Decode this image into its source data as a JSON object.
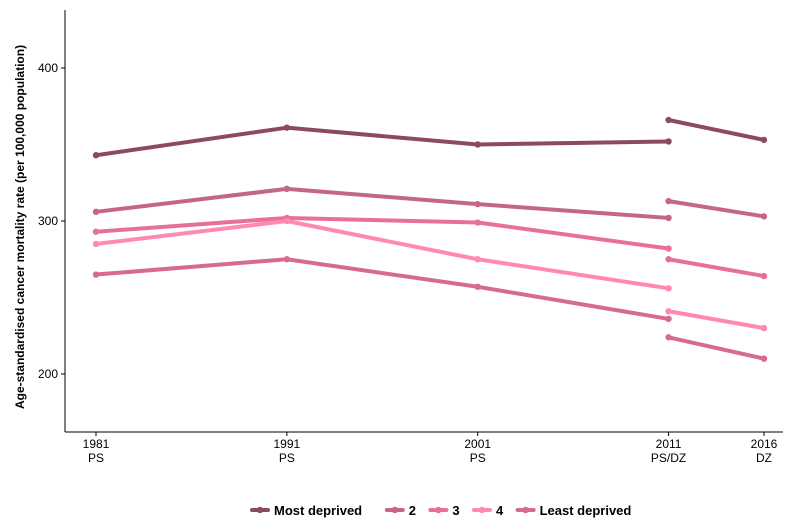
{
  "chart_data": {
    "type": "line",
    "title": "",
    "xlabel": "",
    "ylabel": "Age-standardised cancer mortality rate (per 100,000 population)",
    "ylim": [
      130,
      440
    ],
    "yticks": [
      200,
      300,
      400
    ],
    "x_ticks": [
      {
        "year": 1981,
        "line1": "1981",
        "line2": "PS"
      },
      {
        "year": 1991,
        "line1": "1991",
        "line2": "PS"
      },
      {
        "year": 2001,
        "line1": "2001",
        "line2": "PS"
      },
      {
        "year": 2011,
        "line1": "2011",
        "line2": "PS/DZ"
      },
      {
        "year": 2016,
        "line1": "2016",
        "line2": "DZ"
      }
    ],
    "grid": false,
    "legend_position": "bottom",
    "series": [
      {
        "name": "Most deprived",
        "color": "#8b4a62",
        "segments": [
          [
            [
              1981,
              343
            ],
            [
              1991,
              361
            ],
            [
              2001,
              350
            ],
            [
              2011,
              352
            ]
          ],
          [
            [
              2011,
              366
            ],
            [
              2016,
              353
            ]
          ]
        ]
      },
      {
        "name": "2",
        "color": "#c4668a",
        "segments": [
          [
            [
              1981,
              306
            ],
            [
              1991,
              321
            ],
            [
              2001,
              311
            ],
            [
              2011,
              302
            ]
          ],
          [
            [
              2011,
              313
            ],
            [
              2016,
              303
            ]
          ]
        ]
      },
      {
        "name": "3",
        "color": "#e86f9a",
        "segments": [
          [
            [
              1981,
              293
            ],
            [
              1991,
              302
            ],
            [
              2001,
              299
            ],
            [
              2011,
              282
            ]
          ],
          [
            [
              2011,
              275
            ],
            [
              2016,
              264
            ]
          ]
        ]
      },
      {
        "name": "4",
        "color": "#ff88b6",
        "segments": [
          [
            [
              1981,
              285
            ],
            [
              1991,
              300
            ],
            [
              2001,
              275
            ],
            [
              2011,
              256
            ]
          ],
          [
            [
              2011,
              241
            ],
            [
              2016,
              230
            ]
          ]
        ]
      },
      {
        "name": "Least deprived",
        "color": "#d66a94",
        "segments": [
          [
            [
              1981,
              265
            ],
            [
              1991,
              275
            ],
            [
              2001,
              257
            ],
            [
              2011,
              236
            ]
          ],
          [
            [
              2011,
              224
            ],
            [
              2016,
              210
            ]
          ]
        ]
      }
    ]
  }
}
